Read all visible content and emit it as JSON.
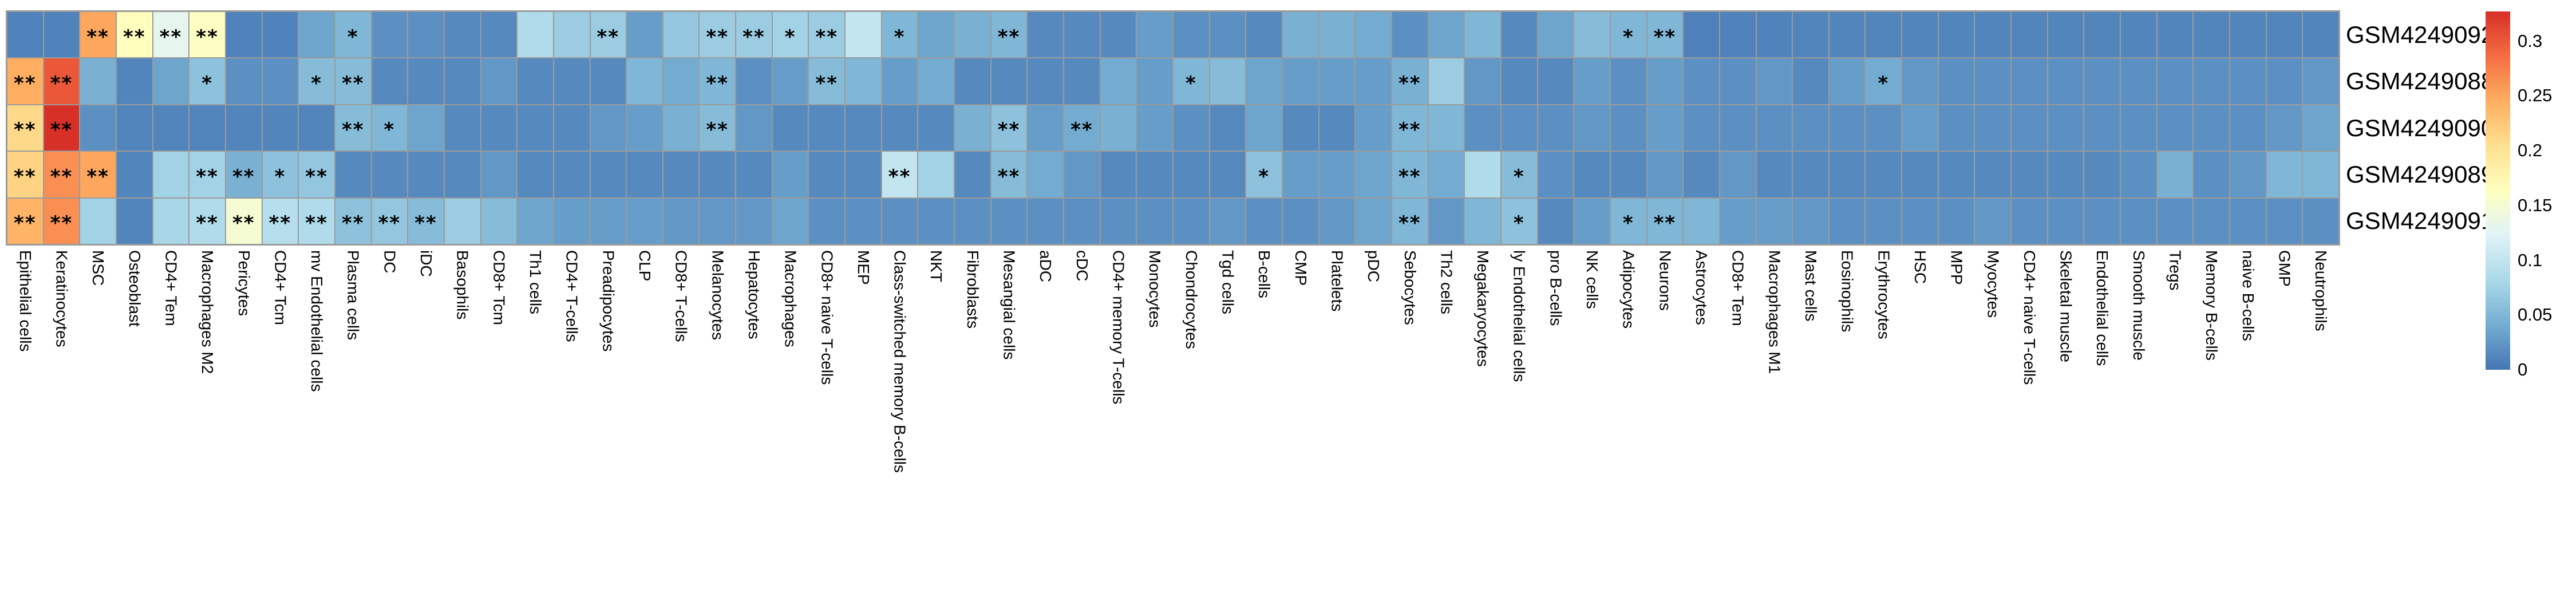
{
  "figure": {
    "background": "#ffffff",
    "grid_color": "#9b9b9b"
  },
  "chart_data": {
    "type": "heatmap",
    "title": "",
    "xlabel": "",
    "ylabel": "",
    "legend_position": "right",
    "grid": true,
    "rows": [
      "GSM4249092",
      "GSM4249088",
      "GSM4249090",
      "GSM4249089",
      "GSM4249091"
    ],
    "columns": [
      "Epithelial cells",
      "Keratinocytes",
      "MSC",
      "Osteoblast",
      "CD4+ Tem",
      "Macrophages M2",
      "Pericytes",
      "CD4+ Tcm",
      "mv Endothelial cells",
      "Plasma cells",
      "DC",
      "iDC",
      "Basophils",
      "CD8+ Tcm",
      "Th1 cells",
      "CD4+ T-cells",
      "Preadipocytes",
      "CLP",
      "CD8+ T-cells",
      "Melanocytes",
      "Hepatocytes",
      "Macrophages",
      "CD8+ naive T-cells",
      "MEP",
      "Class-switched memory B-cells",
      "NKT",
      "Fibroblasts",
      "Mesangial cells",
      "aDC",
      "cDC",
      "CD4+ memory T-cells",
      "Monocytes",
      "Chondrocytes",
      "Tgd cells",
      "B-cells",
      "CMP",
      "Platelets",
      "pDC",
      "Sebocytes",
      "Th2 cells",
      "Megakaryocytes",
      "ly Endothelial cells",
      "pro B-cells",
      "NK cells",
      "Adipocytes",
      "Neurons",
      "Astrocytes",
      "CD8+ Tem",
      "Macrophages M1",
      "Mast cells",
      "Eosinophils",
      "Erythrocytes",
      "HSC",
      "MPP",
      "Myocytes",
      "CD4+ naive T-cells",
      "Skeletal muscle",
      "Endothelial cells",
      "Smooth muscle",
      "Tregs",
      "Memory B-cells",
      "naive B-cells",
      "GMP",
      "Neutrophils"
    ],
    "values": [
      [
        0.01,
        0.01,
        0.25,
        0.165,
        0.13,
        0.16,
        0.01,
        0.01,
        0.035,
        0.05,
        0.02,
        0.02,
        0.015,
        0.015,
        0.085,
        0.07,
        0.07,
        0.03,
        0.065,
        0.07,
        0.07,
        0.075,
        0.07,
        0.1,
        0.05,
        0.035,
        0.045,
        0.05,
        0.015,
        0.015,
        0.015,
        0.03,
        0.02,
        0.02,
        0.015,
        0.045,
        0.045,
        0.04,
        0.02,
        0.035,
        0.05,
        0.015,
        0.035,
        0.055,
        0.05,
        0.05,
        0.008,
        0.01,
        0.01,
        0.012,
        0.012,
        0.012,
        0.012,
        0.012,
        0.012,
        0.012,
        0.012,
        0.012,
        0.012,
        0.012,
        0.012,
        0.012,
        0.012,
        0.012
      ],
      [
        0.245,
        0.3,
        0.045,
        0.012,
        0.035,
        0.06,
        0.02,
        0.02,
        0.055,
        0.055,
        0.015,
        0.015,
        0.015,
        0.025,
        0.015,
        0.015,
        0.015,
        0.05,
        0.04,
        0.05,
        0.02,
        0.03,
        0.055,
        0.05,
        0.03,
        0.04,
        0.015,
        0.015,
        0.015,
        0.015,
        0.04,
        0.03,
        0.05,
        0.055,
        0.035,
        0.03,
        0.03,
        0.03,
        0.045,
        0.07,
        0.025,
        0.015,
        0.015,
        0.03,
        0.02,
        0.03,
        0.02,
        0.02,
        0.025,
        0.015,
        0.03,
        0.04,
        0.025,
        0.02,
        0.02,
        0.02,
        0.02,
        0.02,
        0.02,
        0.02,
        0.02,
        0.02,
        0.02,
        0.025
      ],
      [
        0.21,
        0.327,
        0.02,
        0.012,
        0.012,
        0.012,
        0.012,
        0.012,
        0.012,
        0.055,
        0.05,
        0.035,
        0.015,
        0.015,
        0.015,
        0.015,
        0.025,
        0.03,
        0.045,
        0.055,
        0.025,
        0.015,
        0.015,
        0.015,
        0.015,
        0.015,
        0.045,
        0.06,
        0.03,
        0.04,
        0.045,
        0.03,
        0.02,
        0.015,
        0.035,
        0.015,
        0.015,
        0.03,
        0.05,
        0.05,
        0.02,
        0.02,
        0.02,
        0.025,
        0.02,
        0.03,
        0.02,
        0.02,
        0.02,
        0.02,
        0.02,
        0.02,
        0.03,
        0.02,
        0.02,
        0.02,
        0.02,
        0.02,
        0.02,
        0.02,
        0.02,
        0.02,
        0.025,
        0.035
      ],
      [
        0.215,
        0.265,
        0.25,
        0.012,
        0.075,
        0.075,
        0.045,
        0.06,
        0.065,
        0.015,
        0.015,
        0.015,
        0.015,
        0.025,
        0.015,
        0.015,
        0.015,
        0.015,
        0.015,
        0.015,
        0.015,
        0.03,
        0.015,
        0.015,
        0.1,
        0.075,
        0.015,
        0.055,
        0.04,
        0.025,
        0.015,
        0.015,
        0.015,
        0.015,
        0.06,
        0.03,
        0.03,
        0.035,
        0.05,
        0.04,
        0.085,
        0.055,
        0.02,
        0.015,
        0.015,
        0.025,
        0.015,
        0.025,
        0.015,
        0.015,
        0.015,
        0.015,
        0.015,
        0.015,
        0.015,
        0.015,
        0.015,
        0.015,
        0.02,
        0.045,
        0.02,
        0.025,
        0.05,
        0.05
      ],
      [
        0.24,
        0.265,
        0.075,
        0.012,
        0.08,
        0.085,
        0.15,
        0.09,
        0.085,
        0.06,
        0.065,
        0.055,
        0.07,
        0.055,
        0.035,
        0.03,
        0.03,
        0.03,
        0.025,
        0.025,
        0.025,
        0.035,
        0.02,
        0.02,
        0.02,
        0.02,
        0.02,
        0.02,
        0.02,
        0.02,
        0.02,
        0.02,
        0.02,
        0.025,
        0.02,
        0.02,
        0.025,
        0.035,
        0.05,
        0.025,
        0.05,
        0.06,
        0.015,
        0.03,
        0.05,
        0.05,
        0.05,
        0.03,
        0.03,
        0.025,
        0.02,
        0.02,
        0.02,
        0.02,
        0.025,
        0.02,
        0.02,
        0.02,
        0.02,
        0.02,
        0.02,
        0.02,
        0.02,
        0.02
      ]
    ],
    "significance": [
      [
        [
          2,
          "**"
        ],
        [
          3,
          "**"
        ],
        [
          4,
          "**"
        ],
        [
          5,
          "**"
        ],
        [
          9,
          "*"
        ],
        [
          16,
          "**"
        ],
        [
          19,
          "**"
        ],
        [
          20,
          "**"
        ],
        [
          21,
          "*"
        ],
        [
          22,
          "**"
        ],
        [
          24,
          "*"
        ],
        [
          27,
          "**"
        ],
        [
          44,
          "*"
        ],
        [
          45,
          "**"
        ]
      ],
      [
        [
          0,
          "**"
        ],
        [
          1,
          "**"
        ],
        [
          5,
          "*"
        ],
        [
          8,
          "*"
        ],
        [
          9,
          "**"
        ],
        [
          19,
          "**"
        ],
        [
          22,
          "**"
        ],
        [
          32,
          "*"
        ],
        [
          38,
          "**"
        ],
        [
          51,
          "*"
        ]
      ],
      [
        [
          0,
          "**"
        ],
        [
          1,
          "**"
        ],
        [
          9,
          "**"
        ],
        [
          10,
          "*"
        ],
        [
          19,
          "**"
        ],
        [
          27,
          "**"
        ],
        [
          29,
          "**"
        ],
        [
          38,
          "**"
        ]
      ],
      [
        [
          0,
          "**"
        ],
        [
          1,
          "**"
        ],
        [
          2,
          "**"
        ],
        [
          5,
          "**"
        ],
        [
          6,
          "**"
        ],
        [
          7,
          "*"
        ],
        [
          8,
          "**"
        ],
        [
          24,
          "**"
        ],
        [
          27,
          "**"
        ],
        [
          34,
          "*"
        ],
        [
          38,
          "**"
        ],
        [
          41,
          "*"
        ]
      ],
      [
        [
          0,
          "**"
        ],
        [
          1,
          "**"
        ],
        [
          5,
          "**"
        ],
        [
          6,
          "**"
        ],
        [
          7,
          "**"
        ],
        [
          8,
          "**"
        ],
        [
          9,
          "**"
        ],
        [
          10,
          "**"
        ],
        [
          11,
          "**"
        ],
        [
          38,
          "**"
        ],
        [
          41,
          "*"
        ],
        [
          44,
          "*"
        ],
        [
          45,
          "**"
        ]
      ]
    ],
    "colorbar": {
      "vmin": 0,
      "vmax": 0.327,
      "ticks": [
        {
          "label": "0.3",
          "value": 0.3
        },
        {
          "label": "0.25",
          "value": 0.25
        },
        {
          "label": "0.2",
          "value": 0.2
        },
        {
          "label": "0.15",
          "value": 0.15
        },
        {
          "label": "0.1",
          "value": 0.1
        },
        {
          "label": "0.05",
          "value": 0.05
        },
        {
          "label": "0",
          "value": 0.0
        }
      ],
      "colormap_stops": [
        "#4575b4",
        "#74add1",
        "#abd9e9",
        "#e0f3f8",
        "#ffffbf",
        "#fee090",
        "#fdae61",
        "#f46d43",
        "#d73027"
      ]
    }
  }
}
